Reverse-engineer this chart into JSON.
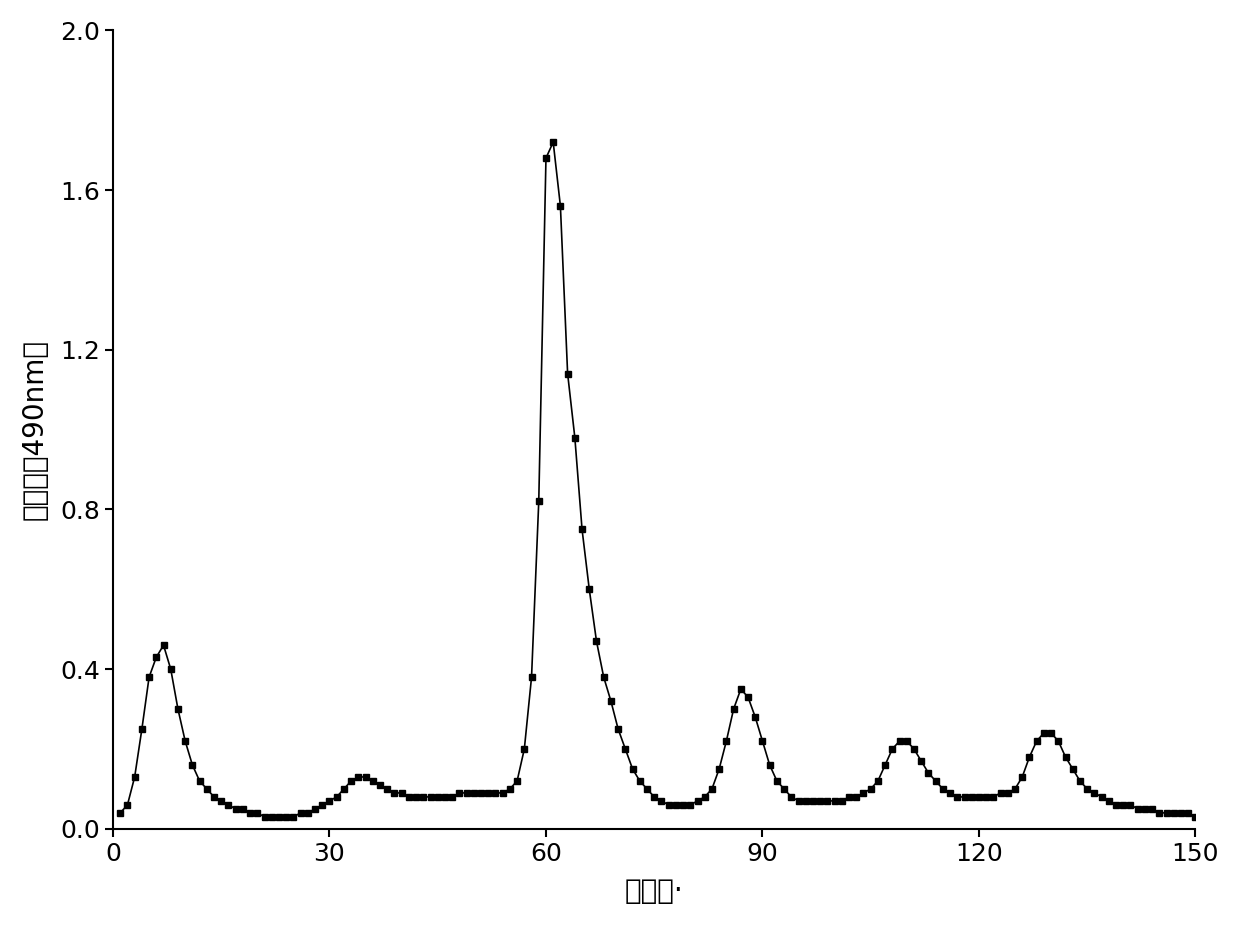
{
  "x": [
    1,
    2,
    3,
    4,
    5,
    6,
    7,
    8,
    9,
    10,
    11,
    12,
    13,
    14,
    15,
    16,
    17,
    18,
    19,
    20,
    21,
    22,
    23,
    24,
    25,
    26,
    27,
    28,
    29,
    30,
    31,
    32,
    33,
    34,
    35,
    36,
    37,
    38,
    39,
    40,
    41,
    42,
    43,
    44,
    45,
    46,
    47,
    48,
    49,
    50,
    51,
    52,
    53,
    54,
    55,
    56,
    57,
    58,
    59,
    60,
    61,
    62,
    63,
    64,
    65,
    66,
    67,
    68,
    69,
    70,
    71,
    72,
    73,
    74,
    75,
    76,
    77,
    78,
    79,
    80,
    81,
    82,
    83,
    84,
    85,
    86,
    87,
    88,
    89,
    90,
    91,
    92,
    93,
    94,
    95,
    96,
    97,
    98,
    99,
    100,
    101,
    102,
    103,
    104,
    105,
    106,
    107,
    108,
    109,
    110,
    111,
    112,
    113,
    114,
    115,
    116,
    117,
    118,
    119,
    120,
    121,
    122,
    123,
    124,
    125,
    126,
    127,
    128,
    129,
    130,
    131,
    132,
    133,
    134,
    135,
    136,
    137,
    138,
    139,
    140,
    141,
    142,
    143,
    144,
    145,
    146,
    147,
    148,
    149,
    150
  ],
  "y": [
    0.04,
    0.06,
    0.13,
    0.25,
    0.38,
    0.43,
    0.46,
    0.4,
    0.3,
    0.22,
    0.16,
    0.12,
    0.1,
    0.08,
    0.07,
    0.06,
    0.05,
    0.05,
    0.04,
    0.04,
    0.03,
    0.03,
    0.03,
    0.03,
    0.03,
    0.04,
    0.04,
    0.05,
    0.06,
    0.07,
    0.08,
    0.1,
    0.12,
    0.13,
    0.13,
    0.12,
    0.11,
    0.1,
    0.09,
    0.09,
    0.08,
    0.08,
    0.08,
    0.08,
    0.08,
    0.08,
    0.08,
    0.09,
    0.09,
    0.09,
    0.09,
    0.09,
    0.09,
    0.09,
    0.1,
    0.12,
    0.2,
    0.38,
    0.82,
    1.68,
    1.72,
    1.56,
    1.14,
    0.98,
    0.75,
    0.6,
    0.47,
    0.38,
    0.32,
    0.25,
    0.2,
    0.15,
    0.12,
    0.1,
    0.08,
    0.07,
    0.06,
    0.06,
    0.06,
    0.06,
    0.07,
    0.08,
    0.1,
    0.15,
    0.22,
    0.3,
    0.35,
    0.33,
    0.28,
    0.22,
    0.16,
    0.12,
    0.1,
    0.08,
    0.07,
    0.07,
    0.07,
    0.07,
    0.07,
    0.07,
    0.07,
    0.08,
    0.08,
    0.09,
    0.1,
    0.12,
    0.16,
    0.2,
    0.22,
    0.22,
    0.2,
    0.17,
    0.14,
    0.12,
    0.1,
    0.09,
    0.08,
    0.08,
    0.08,
    0.08,
    0.08,
    0.08,
    0.09,
    0.09,
    0.1,
    0.13,
    0.18,
    0.22,
    0.24,
    0.24,
    0.22,
    0.18,
    0.15,
    0.12,
    0.1,
    0.09,
    0.08,
    0.07,
    0.06,
    0.06,
    0.06,
    0.05,
    0.05,
    0.05,
    0.04,
    0.04,
    0.04,
    0.04,
    0.04,
    0.03
  ],
  "xlabel": "试管号·",
  "ylabel": "吸光度（490nm）",
  "xlim": [
    0,
    150
  ],
  "ylim": [
    0.0,
    2.0
  ],
  "xticks": [
    0,
    30,
    60,
    90,
    120,
    150
  ],
  "yticks": [
    0.0,
    0.4,
    0.8,
    1.2,
    1.6,
    2.0
  ],
  "line_color": "#000000",
  "marker": "s",
  "markersize": 5,
  "linewidth": 1.2,
  "background_color": "#ffffff",
  "xlabel_fontsize": 20,
  "ylabel_fontsize": 20,
  "tick_fontsize": 18
}
